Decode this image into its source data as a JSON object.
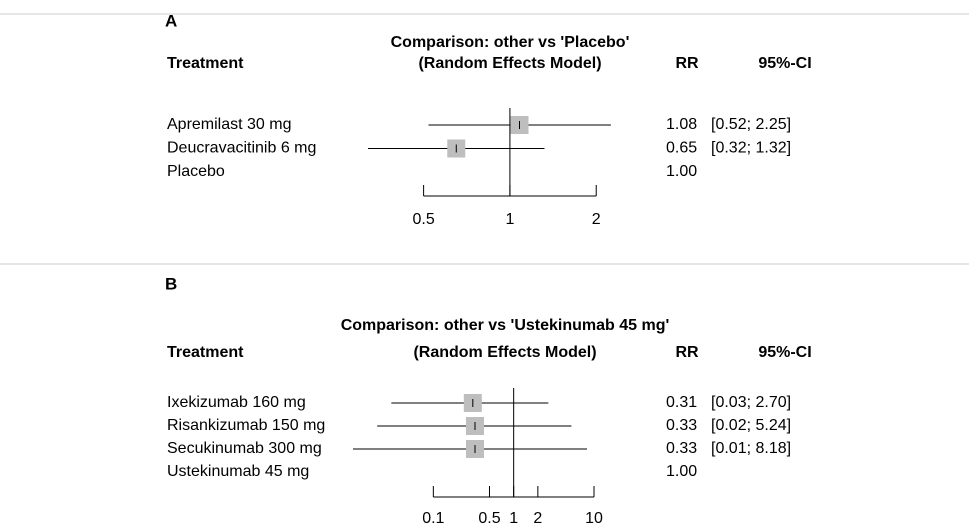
{
  "chart_data": [
    {
      "type": "forest",
      "label": "A",
      "title": "Comparison: other vs 'Placebo'",
      "subtitle": "(Random Effects Model)",
      "columns": [
        "Treatment",
        "RR",
        "95%-CI"
      ],
      "categories": [
        "Apremilast 30 mg",
        "Deucravacitinib 6 mg",
        "Placebo"
      ],
      "values": [
        1.08,
        0.65,
        1.0
      ],
      "value_labels": [
        "1.08",
        "0.65",
        "1.00"
      ],
      "lower": [
        0.52,
        0.32,
        null
      ],
      "upper": [
        2.25,
        1.32,
        null
      ],
      "ci_labels": [
        "[0.52; 2.25]",
        "[0.32; 1.32]",
        null
      ],
      "xscale": "log",
      "xlim": [
        0.3,
        2.5
      ],
      "xticks": [
        0.5,
        1,
        2
      ],
      "reference_line": 1,
      "color": "#bebebe"
    },
    {
      "type": "forest",
      "label": "B",
      "title": "Comparison: other vs 'Ustekinumab 45 mg'",
      "subtitle": "(Random Effects Model)",
      "columns": [
        "Treatment",
        "RR",
        "95%-CI"
      ],
      "categories": [
        "Ixekizumab 160 mg",
        "Risankizumab 150 mg",
        "Secukinumab 300 mg",
        "Ustekinumab 45 mg"
      ],
      "values": [
        0.31,
        0.33,
        0.33,
        1.0
      ],
      "value_labels": [
        "0.31",
        "0.33",
        "0.33",
        "1.00"
      ],
      "lower": [
        0.03,
        0.02,
        0.01,
        null
      ],
      "upper": [
        2.7,
        5.24,
        8.18,
        null
      ],
      "ci_labels": [
        "[0.03; 2.70]",
        "[0.02; 5.24]",
        "[0.01; 8.18]",
        null
      ],
      "xscale": "log",
      "xlim": [
        0.01,
        10
      ],
      "xticks": [
        0.1,
        0.5,
        1,
        2,
        10
      ],
      "reference_line": 1,
      "color": "#bebebe"
    }
  ]
}
